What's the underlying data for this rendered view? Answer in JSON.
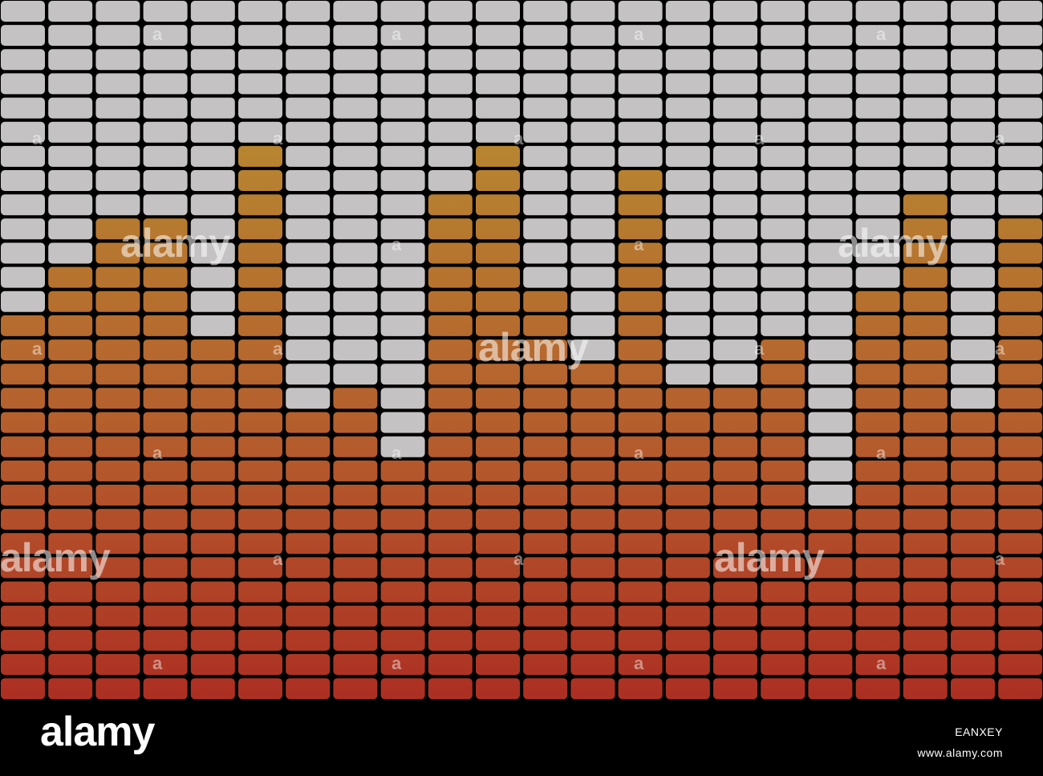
{
  "image": {
    "subject": "equalizer",
    "palette": {
      "background": "#000000",
      "unlit": "#c4c2c3",
      "top": "#b78530",
      "mid": "#b55d2d",
      "bottom": "#ac2e22"
    },
    "bands": {
      "rows": 29,
      "levels": [
        16,
        18,
        20,
        20,
        15,
        23,
        12,
        13,
        10,
        21,
        23,
        17,
        14,
        22,
        13,
        13,
        15,
        8,
        17,
        21,
        12,
        20
      ]
    }
  },
  "watermark": {
    "text": "alamy",
    "mark": "a"
  },
  "footer": {
    "logo": "alamy",
    "image_id": "EANXEY",
    "url": "www.alamy.com"
  }
}
